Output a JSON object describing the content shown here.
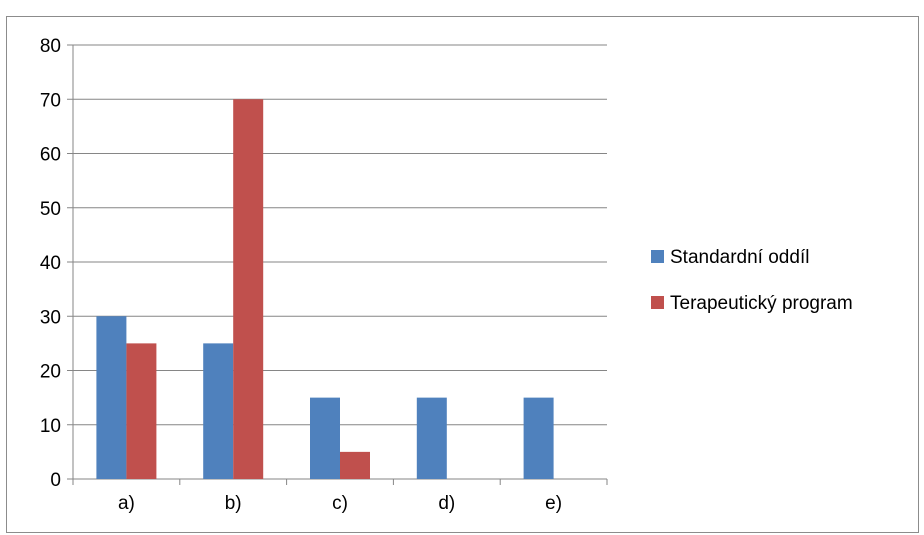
{
  "chart_data": {
    "type": "bar",
    "title": "",
    "xlabel": "",
    "ylabel": "",
    "categories": [
      "a)",
      "b)",
      "c)",
      "d)",
      "e)"
    ],
    "series": [
      {
        "name": "Standardní oddíl",
        "values": [
          30,
          25,
          15,
          15,
          15
        ],
        "color": "#4f81bd"
      },
      {
        "name": "Terapeutický program",
        "values": [
          25,
          70,
          5,
          0,
          0
        ],
        "color": "#c0504d"
      }
    ],
    "ylim": [
      0,
      80
    ],
    "yticks": [
      "0",
      "10",
      "20",
      "30",
      "40",
      "50",
      "60",
      "70",
      "80"
    ],
    "grid": true,
    "legend_position": "right"
  }
}
